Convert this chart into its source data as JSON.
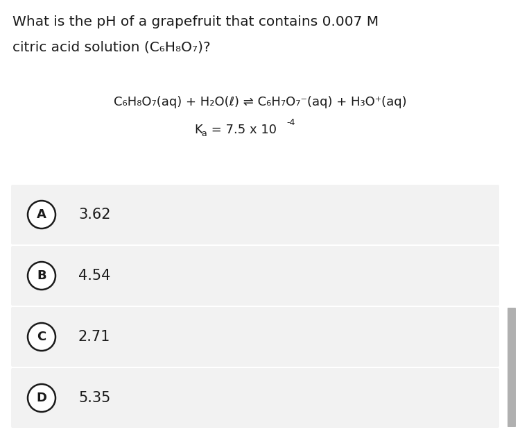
{
  "title_line1": "What is the pH of a grapefruit that contains 0.007 M",
  "title_line2": "citric acid solution (C₆H₈O₇)?",
  "eq_left": "C₆H₈O₇(aq) + H₂O(ℓ) ⇌ C₆H₇O₇⁻(aq) + H₃O⁺(aq)",
  "ka_main": "K",
  "ka_sub": "a",
  "ka_rest": " = 7.5 x 10",
  "ka_sup": "-4",
  "options": [
    {
      "label": "A",
      "value": "3.62"
    },
    {
      "label": "B",
      "value": "4.54"
    },
    {
      "label": "C",
      "value": "2.71"
    },
    {
      "label": "D",
      "value": "5.35"
    }
  ],
  "bg_color": "#ffffff",
  "option_bg_color": "#f2f2f2",
  "text_color": "#1a1a1a",
  "scrollbar_color": "#b0b0b0"
}
